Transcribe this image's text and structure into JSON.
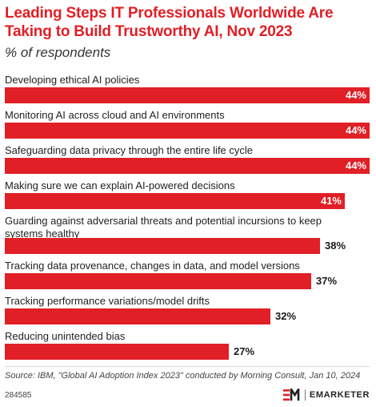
{
  "header": {
    "title": "Leading Steps IT Professionals Worldwide Are Taking to Build Trustworthy AI, Nov 2023",
    "subtitle": "% of respondents"
  },
  "chart_data": {
    "type": "bar",
    "orientation": "horizontal",
    "categories": [
      "Developing ethical AI policies",
      "Monitoring AI across cloud and AI environments",
      "Safeguarding data privacy through the entire life cycle",
      "Making sure we can explain AI-powered decisions",
      "Guarding against adversarial threats and potential incursions to keep systems healthy",
      "Tracking data provenance, changes in data, and model versions",
      "Tracking performance variations/model drifts",
      "Reducing unintended bias"
    ],
    "values": [
      44,
      44,
      44,
      41,
      38,
      37,
      32,
      27
    ],
    "value_suffix": "%",
    "bar_color": "#e11f26",
    "xlim": [
      0,
      44
    ],
    "grid": false
  },
  "footer": {
    "source": "Source: IBM, \"Global AI Adoption Index 2023\" conducted by Morning Consult, Jan 10, 2024",
    "chart_id": "284585",
    "logo_icon": "emarketer-logo-icon",
    "brand": "EMARKETER"
  }
}
